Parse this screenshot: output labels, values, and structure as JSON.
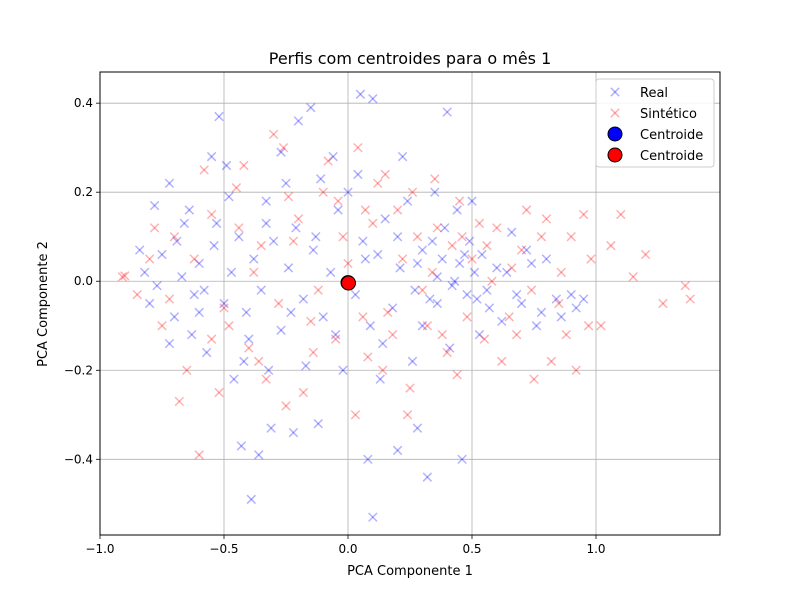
{
  "chart_data": {
    "type": "scatter",
    "title": "Perfis com centroides para o mês 1",
    "xlabel": "PCA Componente 1",
    "ylabel": "PCA Componente 2",
    "xlim": [
      -1.0,
      1.5
    ],
    "ylim": [
      -0.57,
      0.47
    ],
    "xticks": [
      -1.0,
      -0.5,
      0.0,
      0.5,
      1.0
    ],
    "xtick_labels": [
      "−1.0",
      "−0.5",
      "0.0",
      "0.5",
      "1.0"
    ],
    "yticks": [
      -0.4,
      -0.2,
      0.0,
      0.2,
      0.4
    ],
    "ytick_labels": [
      "−0.4",
      "−0.2",
      "0.0",
      "0.2",
      "0.4"
    ],
    "grid": true,
    "legend_position": "top-right",
    "series": [
      {
        "name": "Real",
        "marker": "x",
        "color": "#0000ff",
        "opacity": 0.3,
        "points": [
          [
            -0.78,
            0.17
          ],
          [
            -0.72,
            0.22
          ],
          [
            -0.66,
            0.13
          ],
          [
            -0.62,
            -0.03
          ],
          [
            -0.55,
            0.28
          ],
          [
            -0.52,
            0.37
          ],
          [
            -0.49,
            0.26
          ],
          [
            -0.46,
            -0.22
          ],
          [
            -0.43,
            -0.37
          ],
          [
            -0.39,
            -0.49
          ],
          [
            -0.36,
            -0.39
          ],
          [
            -0.33,
            0.18
          ],
          [
            -0.31,
            -0.33
          ],
          [
            -0.27,
            0.29
          ],
          [
            -0.22,
            -0.34
          ],
          [
            -0.2,
            0.36
          ],
          [
            -0.15,
            0.39
          ],
          [
            -0.12,
            -0.32
          ],
          [
            -0.06,
            0.28
          ],
          [
            0.05,
            0.42
          ],
          [
            0.1,
            0.41
          ],
          [
            0.08,
            -0.4
          ],
          [
            0.1,
            -0.53
          ],
          [
            0.2,
            -0.38
          ],
          [
            0.28,
            -0.33
          ],
          [
            0.32,
            -0.44
          ],
          [
            0.4,
            0.38
          ],
          [
            0.46,
            -0.4
          ],
          [
            0.5,
            0.18
          ],
          [
            0.56,
            -0.02
          ],
          [
            0.64,
            0.02
          ],
          [
            0.7,
            -0.05
          ],
          [
            0.74,
            0.04
          ],
          [
            0.78,
            -0.07
          ],
          [
            0.84,
            -0.04
          ],
          [
            0.9,
            -0.03
          ],
          [
            0.95,
            -0.04
          ],
          [
            -0.82,
            0.02
          ],
          [
            -0.8,
            -0.05
          ],
          [
            -0.75,
            0.06
          ],
          [
            -0.7,
            -0.08
          ],
          [
            -0.67,
            0.01
          ],
          [
            -0.63,
            -0.12
          ],
          [
            -0.6,
            0.04
          ],
          [
            -0.58,
            -0.02
          ],
          [
            -0.54,
            0.08
          ],
          [
            -0.5,
            -0.05
          ],
          [
            -0.47,
            0.02
          ],
          [
            -0.44,
            0.1
          ],
          [
            -0.41,
            -0.07
          ],
          [
            -0.38,
            0.05
          ],
          [
            -0.35,
            -0.02
          ],
          [
            -0.3,
            0.09
          ],
          [
            -0.27,
            -0.11
          ],
          [
            -0.24,
            0.03
          ],
          [
            -0.21,
            0.12
          ],
          [
            -0.18,
            -0.04
          ],
          [
            -0.14,
            0.07
          ],
          [
            -0.1,
            -0.08
          ],
          [
            -0.07,
            0.02
          ],
          [
            -0.04,
            0.16
          ],
          [
            0.0,
            0.2
          ],
          [
            0.03,
            -0.03
          ],
          [
            0.06,
            0.09
          ],
          [
            0.09,
            -0.1
          ],
          [
            0.12,
            0.06
          ],
          [
            0.15,
            0.14
          ],
          [
            0.18,
            -0.06
          ],
          [
            0.21,
            0.03
          ],
          [
            0.24,
            0.18
          ],
          [
            0.27,
            -0.02
          ],
          [
            0.3,
            0.07
          ],
          [
            0.33,
            -0.04
          ],
          [
            0.36,
            0.01
          ],
          [
            0.39,
            0.12
          ],
          [
            0.42,
            -0.01
          ],
          [
            0.45,
            0.04
          ],
          [
            0.48,
            -0.03
          ],
          [
            0.51,
            0.02
          ],
          [
            0.54,
            0.06
          ],
          [
            0.57,
            -0.06
          ],
          [
            0.6,
            0.03
          ],
          [
            0.62,
            -0.09
          ],
          [
            0.66,
            0.11
          ],
          [
            0.68,
            -0.03
          ],
          [
            0.72,
            0.07
          ],
          [
            0.76,
            -0.1
          ],
          [
            0.8,
            0.05
          ],
          [
            0.86,
            -0.08
          ],
          [
            0.92,
            -0.06
          ],
          [
            -0.72,
            -0.14
          ],
          [
            -0.64,
            0.16
          ],
          [
            -0.57,
            -0.16
          ],
          [
            -0.48,
            0.19
          ],
          [
            -0.42,
            -0.18
          ],
          [
            -0.32,
            -0.2
          ],
          [
            -0.25,
            0.22
          ],
          [
            -0.17,
            -0.19
          ],
          [
            -0.11,
            0.23
          ],
          [
            -0.02,
            -0.2
          ],
          [
            0.04,
            0.24
          ],
          [
            0.13,
            -0.22
          ],
          [
            0.22,
            0.28
          ],
          [
            0.26,
            -0.18
          ],
          [
            0.35,
            0.2
          ],
          [
            0.41,
            -0.15
          ],
          [
            0.44,
            0.16
          ],
          [
            0.49,
            0.09
          ],
          [
            0.53,
            -0.12
          ],
          [
            0.36,
            -0.05
          ],
          [
            0.3,
            -0.1
          ],
          [
            0.2,
            0.1
          ],
          [
            0.14,
            -0.14
          ],
          [
            0.07,
            0.05
          ],
          [
            -0.05,
            -0.12
          ],
          [
            -0.13,
            0.1
          ],
          [
            -0.23,
            -0.07
          ],
          [
            -0.33,
            0.13
          ],
          [
            -0.4,
            -0.13
          ],
          [
            -0.53,
            0.13
          ],
          [
            -0.6,
            -0.07
          ],
          [
            -0.69,
            0.09
          ],
          [
            -0.77,
            -0.01
          ],
          [
            -0.84,
            0.07
          ],
          [
            0.38,
            0.05
          ],
          [
            0.43,
            0.0
          ],
          [
            0.47,
            0.06
          ],
          [
            0.52,
            -0.04
          ],
          [
            0.34,
            0.09
          ],
          [
            0.28,
            0.04
          ]
        ]
      },
      {
        "name": "Sintético",
        "marker": "x",
        "color": "#ff0000",
        "opacity": 0.3,
        "points": [
          [
            -0.91,
            0.01
          ],
          [
            -0.9,
            0.012
          ],
          [
            -0.85,
            -0.03
          ],
          [
            -0.8,
            0.05
          ],
          [
            -0.75,
            -0.1
          ],
          [
            -0.7,
            0.1
          ],
          [
            -0.65,
            -0.2
          ],
          [
            -0.6,
            -0.39
          ],
          [
            -0.55,
            0.15
          ],
          [
            -0.5,
            -0.06
          ],
          [
            -0.45,
            0.21
          ],
          [
            -0.4,
            -0.15
          ],
          [
            -0.35,
            0.08
          ],
          [
            -0.3,
            0.33
          ],
          [
            -0.25,
            -0.28
          ],
          [
            -0.2,
            0.14
          ],
          [
            -0.15,
            -0.09
          ],
          [
            -0.1,
            0.2
          ],
          [
            -0.05,
            -0.13
          ],
          [
            0.0,
            0.04
          ],
          [
            0.04,
            0.3
          ],
          [
            0.08,
            -0.17
          ],
          [
            0.12,
            0.22
          ],
          [
            0.16,
            -0.07
          ],
          [
            0.2,
            0.16
          ],
          [
            0.24,
            -0.3
          ],
          [
            0.28,
            0.1
          ],
          [
            0.32,
            -0.1
          ],
          [
            0.36,
            0.12
          ],
          [
            0.4,
            -0.16
          ],
          [
            0.45,
            0.18
          ],
          [
            0.5,
            0.05
          ],
          [
            0.55,
            -0.13
          ],
          [
            0.6,
            0.12
          ],
          [
            0.65,
            -0.08
          ],
          [
            0.7,
            0.07
          ],
          [
            0.75,
            -0.22
          ],
          [
            0.8,
            0.14
          ],
          [
            0.85,
            -0.05
          ],
          [
            0.9,
            0.1
          ],
          [
            0.95,
            0.15
          ],
          [
            0.98,
            0.05
          ],
          [
            1.02,
            -0.1
          ],
          [
            1.06,
            0.08
          ],
          [
            1.1,
            0.15
          ],
          [
            1.15,
            0.01
          ],
          [
            1.2,
            0.06
          ],
          [
            1.27,
            -0.05
          ],
          [
            1.36,
            -0.01
          ],
          [
            1.38,
            -0.04
          ],
          [
            -0.68,
            -0.27
          ],
          [
            -0.58,
            0.25
          ],
          [
            -0.52,
            -0.25
          ],
          [
            -0.42,
            0.26
          ],
          [
            -0.33,
            -0.22
          ],
          [
            -0.26,
            0.3
          ],
          [
            -0.18,
            -0.25
          ],
          [
            -0.08,
            0.27
          ],
          [
            0.03,
            -0.3
          ],
          [
            0.15,
            0.24
          ],
          [
            0.25,
            -0.24
          ],
          [
            0.35,
            0.23
          ],
          [
            0.44,
            -0.21
          ],
          [
            0.53,
            0.13
          ],
          [
            0.62,
            -0.18
          ],
          [
            0.72,
            0.16
          ],
          [
            0.82,
            -0.18
          ],
          [
            0.92,
            -0.2
          ],
          [
            0.97,
            -0.1
          ],
          [
            -0.78,
            0.12
          ],
          [
            -0.62,
            0.05
          ],
          [
            -0.48,
            -0.1
          ],
          [
            -0.38,
            0.02
          ],
          [
            -0.28,
            -0.05
          ],
          [
            -0.22,
            0.09
          ],
          [
            -0.12,
            -0.02
          ],
          [
            -0.02,
            0.1
          ],
          [
            0.06,
            -0.08
          ],
          [
            0.1,
            0.13
          ],
          [
            0.18,
            -0.12
          ],
          [
            0.22,
            0.05
          ],
          [
            0.3,
            -0.02
          ],
          [
            0.34,
            0.02
          ],
          [
            0.42,
            0.08
          ],
          [
            0.48,
            -0.08
          ],
          [
            0.58,
            0.0
          ],
          [
            0.66,
            0.03
          ],
          [
            0.74,
            -0.02
          ],
          [
            0.88,
            -0.12
          ],
          [
            -0.72,
            -0.04
          ],
          [
            -0.55,
            -0.13
          ],
          [
            -0.44,
            0.12
          ],
          [
            -0.36,
            -0.18
          ],
          [
            -0.24,
            0.19
          ],
          [
            -0.14,
            -0.16
          ],
          [
            -0.04,
            0.18
          ],
          [
            0.07,
            0.16
          ],
          [
            0.14,
            -0.2
          ],
          [
            0.26,
            0.2
          ],
          [
            0.38,
            -0.12
          ],
          [
            0.46,
            0.1
          ],
          [
            0.56,
            0.08
          ],
          [
            0.68,
            -0.12
          ],
          [
            0.78,
            0.1
          ],
          [
            0.86,
            0.02
          ]
        ]
      },
      {
        "name": "Centroide",
        "marker": "o",
        "color": "#0000ff",
        "points": [
          [
            0.0,
            -0.003
          ]
        ]
      },
      {
        "name": "Centroide",
        "marker": "o",
        "color": "#ff0000",
        "points": [
          [
            0.002,
            -0.004
          ]
        ]
      }
    ]
  }
}
